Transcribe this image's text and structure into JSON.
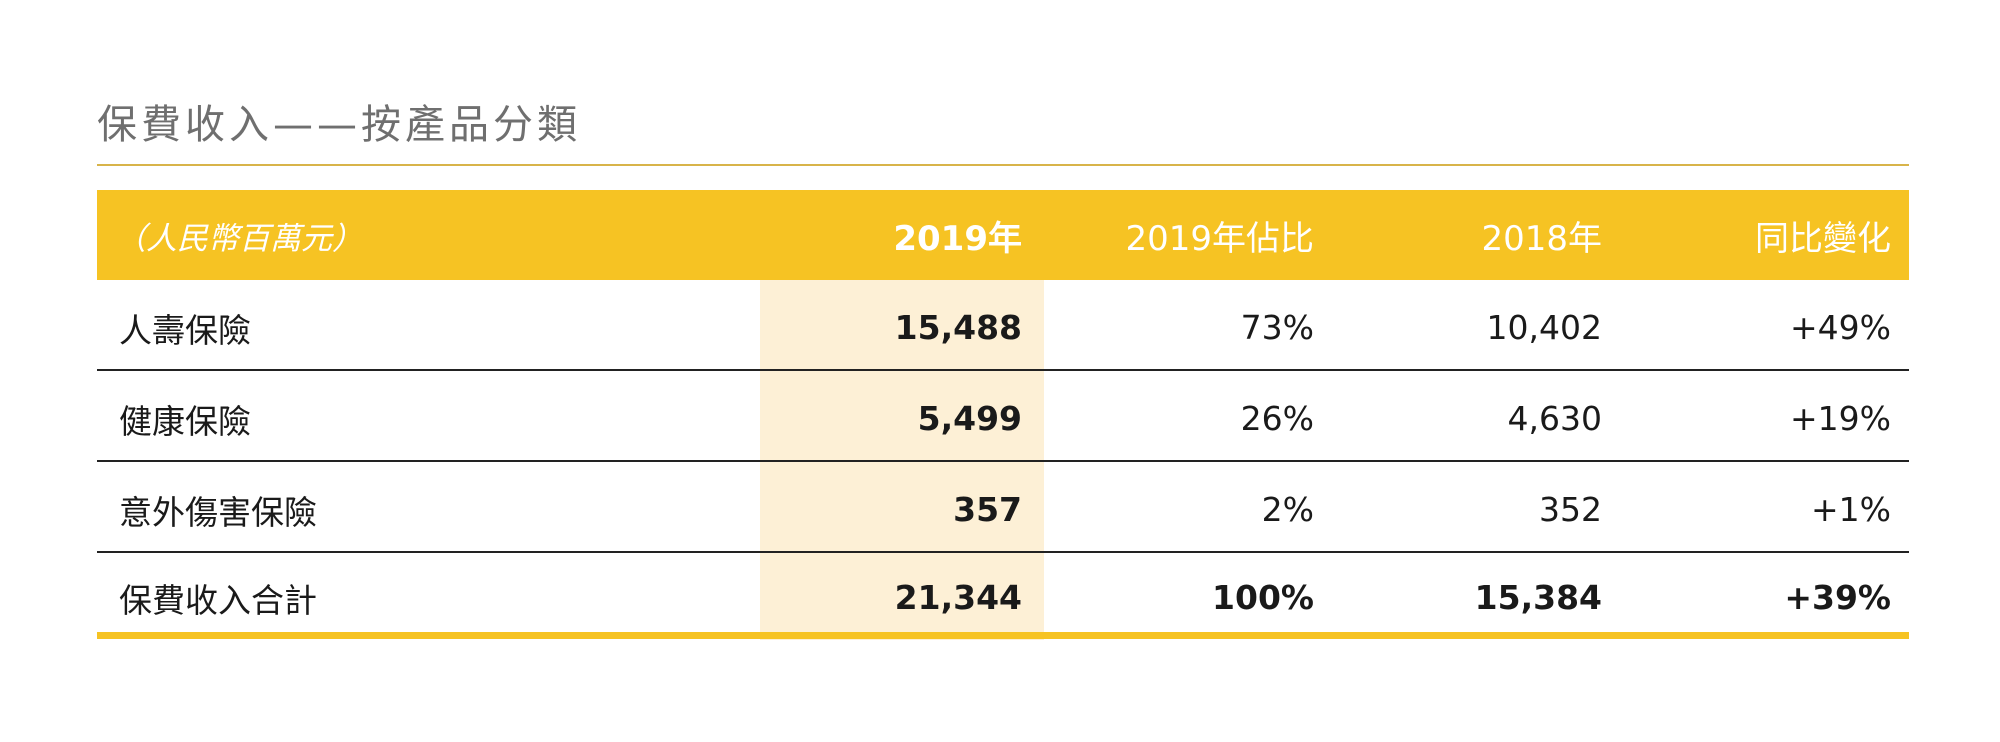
{
  "title": "保費收入——按產品分類",
  "table": {
    "headers": [
      "（人民幣百萬元）",
      "2019年",
      "2019年佔比",
      "2018年",
      "同比變化"
    ],
    "rows": [
      [
        "人壽保險",
        "15,488",
        "73%",
        "10,402",
        "+49%"
      ],
      [
        "健康保險",
        "5,499",
        "26%",
        "4,630",
        "+19%"
      ],
      [
        "意外傷害保險",
        "357",
        "2%",
        "352",
        "+1%"
      ]
    ],
    "total": [
      "保費收入合計",
      "21,344",
      "100%",
      "15,384",
      "+39%"
    ]
  },
  "colors": {
    "accent": "#f6c323",
    "highlight": "#fdf0d6",
    "title": "#6f6f6f",
    "rule": "#d8b44a"
  }
}
